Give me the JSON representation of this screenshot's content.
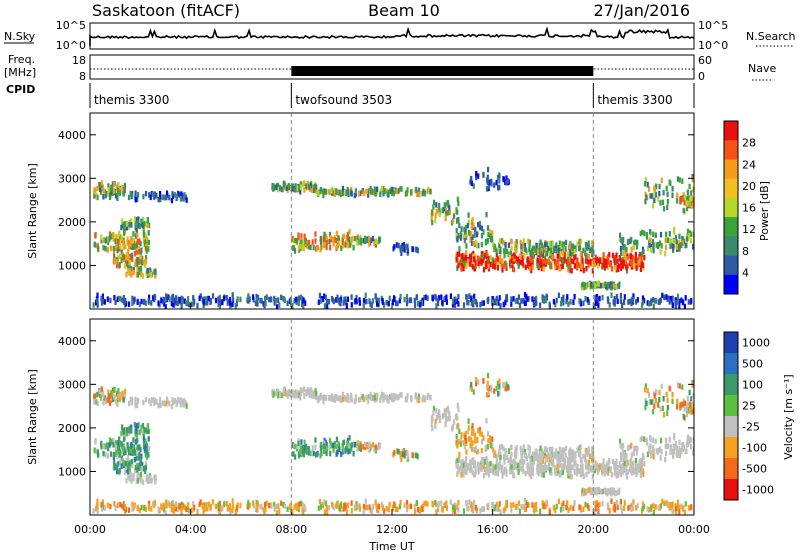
{
  "header": {
    "station": "Saskatoon (fitACF)",
    "beam": "Beam 10",
    "date": "27/Jan/2016"
  },
  "top_panels": {
    "nsky_label": "N.Sky",
    "nsky_ticks": [
      "10^5",
      "10^0"
    ],
    "nsearch_label": "N.Search",
    "nsearch_ticks": [
      "10^5",
      "10^0"
    ],
    "freq_label": "Freq.",
    "freq_unit": "[MHz]",
    "freq_ticks": [
      "18",
      "8"
    ],
    "nave_label": "Nave",
    "nave_ticks": [
      "60",
      "0"
    ],
    "cpid_label": "CPID"
  },
  "cpid_segments": [
    {
      "label": "themis 3300",
      "start_hour": 0,
      "end_hour": 8
    },
    {
      "label": "twofsound 3503",
      "start_hour": 8,
      "end_hour": 20
    },
    {
      "label": "themis 3300",
      "start_hour": 20,
      "end_hour": 24
    }
  ],
  "chart_data": [
    {
      "type": "heatmap",
      "name": "power-panel",
      "ylabel": "Slant Range [km]",
      "xlim": [
        0,
        24
      ],
      "ylim": [
        0,
        4500
      ],
      "yticks": [
        1000,
        2000,
        3000,
        4000
      ],
      "colorbar": {
        "label": "Power [dB]",
        "range": [
          0,
          32
        ],
        "ticks": [
          4,
          8,
          12,
          16,
          20,
          24,
          28
        ]
      },
      "colors": [
        "#0000ff",
        "#2e5aa8",
        "#3a8a6e",
        "#3aa33a",
        "#b5d62a",
        "#f0c020",
        "#f59a1a",
        "#f5521a",
        "#e81010"
      ]
    },
    {
      "type": "heatmap",
      "name": "velocity-panel",
      "ylabel": "Slant Range [km]",
      "xlabel": "Time UT",
      "xlim": [
        0,
        24
      ],
      "ylim": [
        0,
        4500
      ],
      "yticks": [
        1000,
        2000,
        3000,
        4000
      ],
      "xticks": [
        "00:00",
        "04:00",
        "08:00",
        "12:00",
        "16:00",
        "20:00",
        "00:00"
      ],
      "colorbar": {
        "label": "Velocity [m s⁻¹]",
        "ticks": [
          "1000",
          "500",
          "100",
          "25",
          "-25",
          "-100",
          "-500",
          "-1000"
        ]
      },
      "colors": [
        "#1f3fb0",
        "#2a6fc0",
        "#3a9a6a",
        "#5ac040",
        "#c0c0c0",
        "#f5a020",
        "#f56a1a",
        "#e81010"
      ]
    }
  ]
}
